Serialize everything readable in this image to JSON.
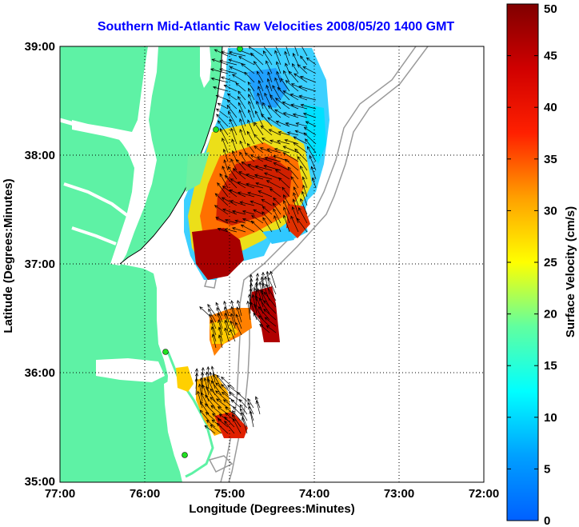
{
  "figure": {
    "title": "Southern Mid-Atlantic Raw Velocities 2008/05/20 1400 GMT",
    "xlabel": "Longitude (Degrees:Minutes)",
    "ylabel": "Latitude (Degrees:Minutes)",
    "colorbar_label": "Surface Velocity (cm/s)",
    "land_color": "#5ef2a5",
    "title_color": "#0000ff"
  },
  "axes": {
    "x_ticks": [
      "77:00",
      "76:00",
      "75:00",
      "74:00",
      "73:00",
      "72:00"
    ],
    "y_ticks": [
      "39:00",
      "38:00",
      "37:00",
      "36:00",
      "35:00"
    ],
    "lon_range": [
      -77,
      -72
    ],
    "lat_range": [
      35,
      39
    ],
    "grid": "dotted"
  },
  "colorbar": {
    "ticks": [
      "50",
      "45",
      "40",
      "35",
      "30",
      "25",
      "20",
      "15",
      "10",
      "5",
      "0"
    ],
    "range": [
      0,
      50
    ],
    "colormap": "jet"
  }
}
